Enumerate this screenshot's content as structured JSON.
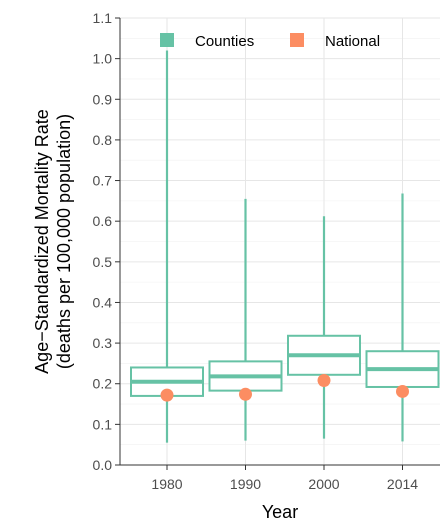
{
  "chart_data": {
    "type": "boxplot",
    "title": "",
    "xlabel": "Year",
    "ylabel_lines": [
      "Age−Standardized Mortality Rate",
      "(deaths per 100,000 population)"
    ],
    "ylim": [
      0,
      1.1
    ],
    "y_ticks": [
      "0.0",
      "0.1",
      "0.2",
      "0.3",
      "0.4",
      "0.5",
      "0.6",
      "0.7",
      "0.8",
      "0.9",
      "1.0",
      "1.1"
    ],
    "categories": [
      "1980",
      "1990",
      "2000",
      "2014"
    ],
    "grid": true,
    "legend": {
      "position": "top-inside",
      "entries": [
        {
          "label": "Counties",
          "color": "#66C2A5"
        },
        {
          "label": "National",
          "color": "#FC8D62"
        }
      ]
    },
    "series": [
      {
        "name": "Counties",
        "type": "box",
        "color": "#66C2A5",
        "boxes": [
          {
            "category": "1980",
            "min": 0.055,
            "q1": 0.17,
            "median": 0.205,
            "q3": 0.24,
            "max": 1.02
          },
          {
            "category": "1990",
            "min": 0.06,
            "q1": 0.183,
            "median": 0.218,
            "q3": 0.255,
            "max": 0.655
          },
          {
            "category": "2000",
            "min": 0.065,
            "q1": 0.222,
            "median": 0.27,
            "q3": 0.318,
            "max": 0.612
          },
          {
            "category": "2014",
            "min": 0.058,
            "q1": 0.192,
            "median": 0.236,
            "q3": 0.28,
            "max": 0.668
          }
        ]
      },
      {
        "name": "National",
        "type": "point",
        "color": "#FC8D62",
        "values": [
          0.172,
          0.174,
          0.208,
          0.181
        ]
      }
    ]
  }
}
